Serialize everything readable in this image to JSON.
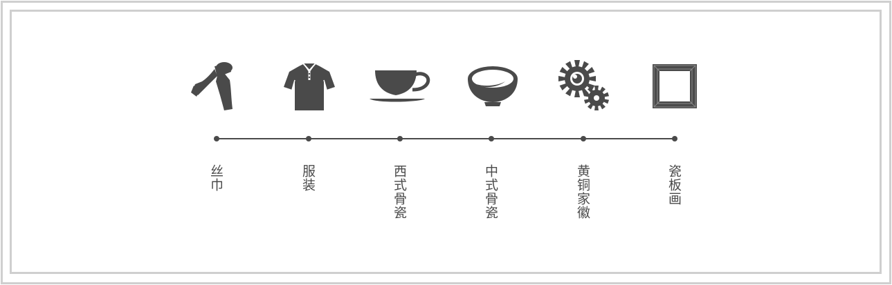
{
  "items": [
    {
      "label": "丝巾",
      "icon": "scarf-icon"
    },
    {
      "label": "服装",
      "icon": "polo-shirt-icon"
    },
    {
      "label": "西式骨瓷",
      "icon": "teacup-icon"
    },
    {
      "label": "中式骨瓷",
      "icon": "bowl-icon"
    },
    {
      "label": "黄铜家徽",
      "icon": "gears-icon"
    },
    {
      "label": "瓷板画",
      "icon": "picture-frame-icon"
    }
  ],
  "colors": {
    "icon": "#4a4a4a",
    "frame": "#cfcfcf",
    "background": "#ffffff"
  }
}
